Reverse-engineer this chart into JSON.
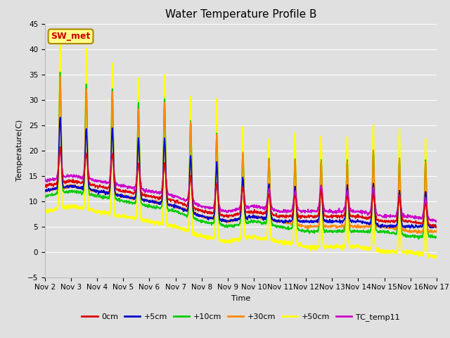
{
  "title": "Water Temperature Profile B",
  "xlabel": "Time",
  "ylabel": "Temperature(C)",
  "ylim": [
    -5,
    45
  ],
  "yticks": [
    -5,
    0,
    5,
    10,
    15,
    20,
    25,
    30,
    35,
    40,
    45
  ],
  "x_labels": [
    "Nov 2",
    "Nov 3",
    "Nov 4",
    "Nov 5",
    "Nov 6",
    "Nov 7",
    "Nov 8",
    "Nov 9",
    "Nov 10",
    "Nov 11",
    "Nov 12",
    "Nov 13",
    "Nov 14",
    "Nov 15",
    "Nov 16",
    "Nov 17"
  ],
  "series_0cm": {
    "color": "#dd0000",
    "linewidth": 1.2,
    "label": "0cm"
  },
  "series_5cm": {
    "color": "#0000cc",
    "linewidth": 1.2,
    "label": "+5cm"
  },
  "series_10cm": {
    "color": "#00cc00",
    "linewidth": 1.2,
    "label": "+10cm"
  },
  "series_30cm": {
    "color": "#ff8800",
    "linewidth": 1.2,
    "label": "+30cm"
  },
  "series_50cm": {
    "color": "#ffff00",
    "linewidth": 1.5,
    "label": "+50cm"
  },
  "series_tc": {
    "color": "#cc00cc",
    "linewidth": 1.2,
    "label": "TC_temp11"
  },
  "annotation_text": "SW_met",
  "annotation_color": "#cc0000",
  "annotation_box_facecolor": "#ffff88",
  "annotation_box_edgecolor": "#aa8800",
  "bg_color": "#e0e0e0",
  "grid_color": "#ffffff",
  "title_fontsize": 11,
  "axis_fontsize": 8,
  "tick_fontsize": 7.5,
  "legend_fontsize": 8
}
